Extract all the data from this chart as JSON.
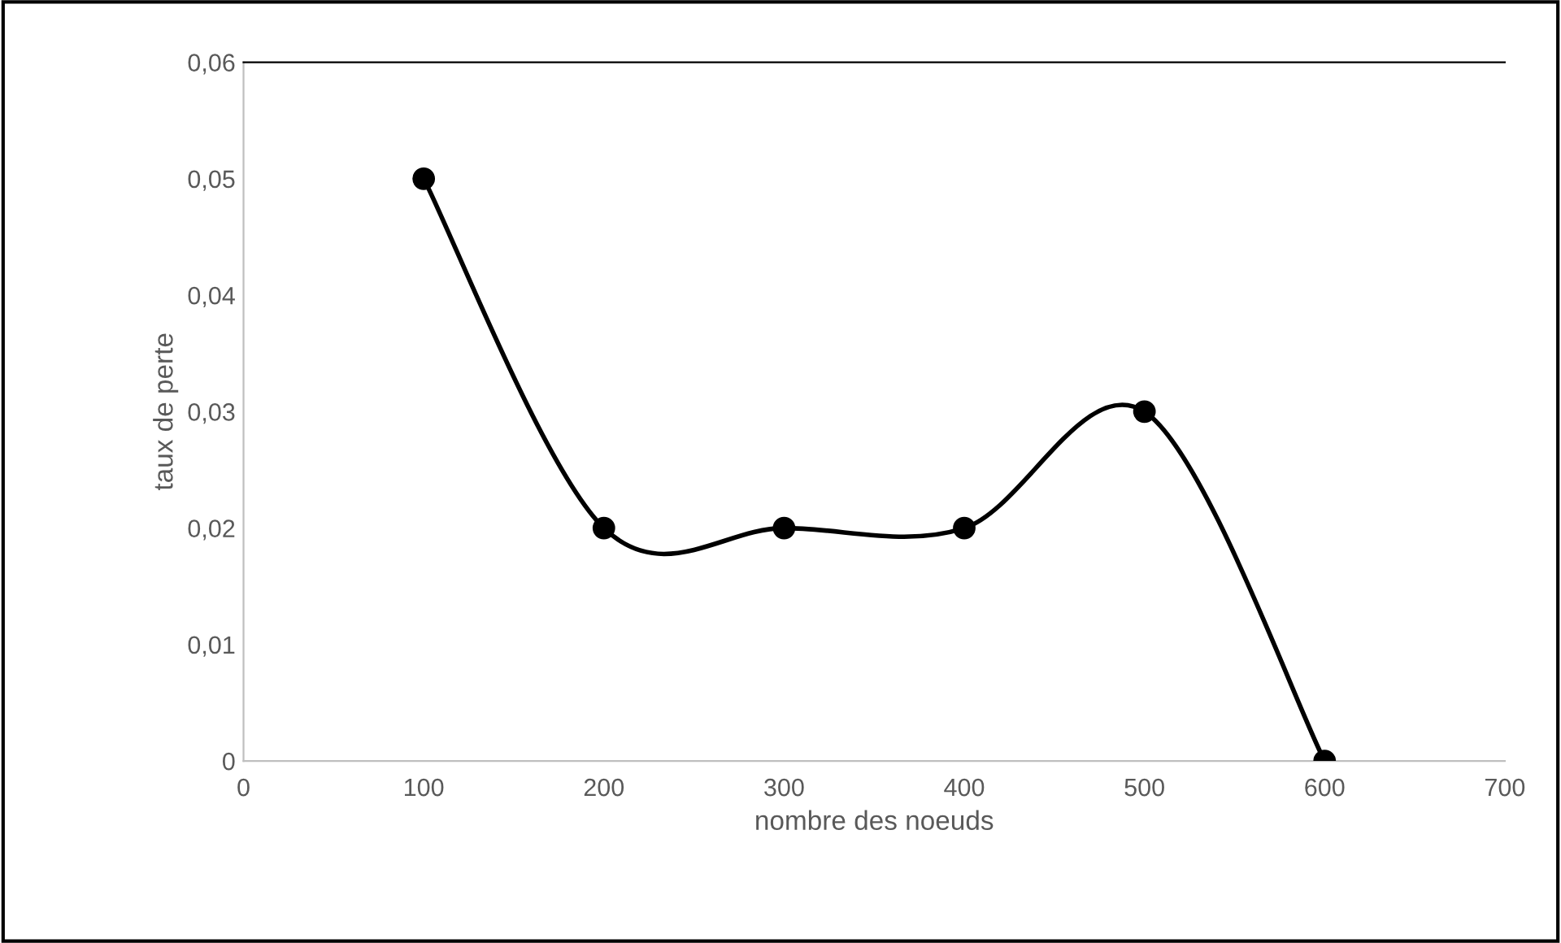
{
  "chart_data": {
    "type": "line",
    "xlabel": "nombre des noeuds",
    "ylabel": "taux de perte",
    "x": [
      100,
      200,
      300,
      400,
      500,
      600
    ],
    "series": [
      {
        "color": "#000000",
        "values": [
          0.05,
          0.02,
          0.02,
          0.02,
          0.03,
          0
        ]
      }
    ],
    "xlim": [
      0,
      700
    ],
    "xticks": [
      0,
      100,
      200,
      300,
      400,
      500,
      600,
      700
    ],
    "ylim": [
      0,
      0.06
    ],
    "yticks": [
      {
        "value": 0,
        "label": "0"
      },
      {
        "value": 0.01,
        "label": "0,01"
      },
      {
        "value": 0.02,
        "label": "0,02"
      },
      {
        "value": 0.03,
        "label": "0,03"
      },
      {
        "value": 0.04,
        "label": "0,04"
      },
      {
        "value": 0.05,
        "label": "0,05"
      },
      {
        "value": 0.06,
        "label": "0,06"
      }
    ],
    "grid": false,
    "marker": "circle",
    "line_style": "solid"
  }
}
